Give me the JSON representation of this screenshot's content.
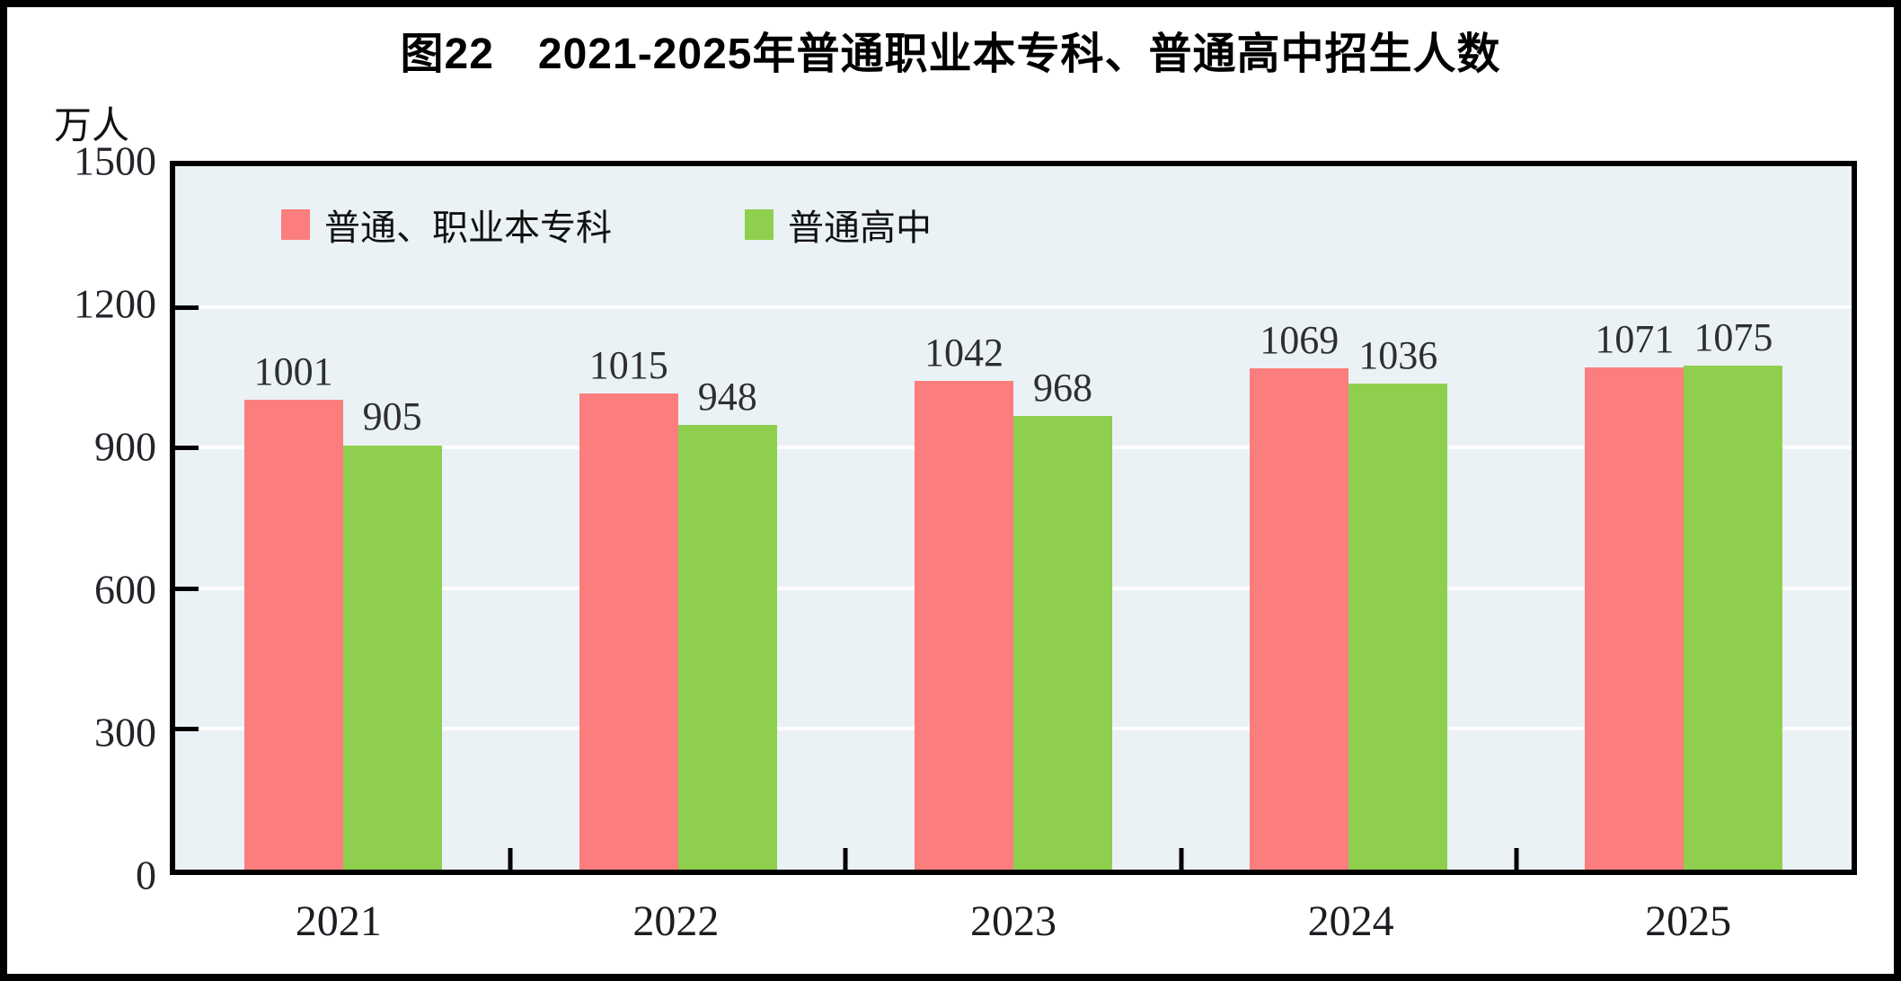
{
  "title": "图22　2021-2025年普通职业本专科、普通高中招生人数",
  "unit_label": "万人",
  "colors": {
    "series_1": "#FB7D7D",
    "series_2": "#8FCF4E",
    "plot_background": "#EAF2F6",
    "gridline": "#FFFFFF",
    "axis": "#000000",
    "text": "#1c1c22"
  },
  "legend": [
    {
      "label": "普通、职业本专科",
      "color": "#FB7D7D"
    },
    {
      "label": "普通高中",
      "color": "#8FCF4E"
    }
  ],
  "chart_data": {
    "type": "bar",
    "title": "图22　2021-2025年普通职业本专科、普通高中招生人数",
    "ylabel": "万人",
    "xlabel": "",
    "categories": [
      "2021",
      "2022",
      "2023",
      "2024",
      "2025"
    ],
    "series": [
      {
        "name": "普通、职业本专科",
        "color": "#FB7D7D",
        "values": [
          1001,
          1015,
          1042,
          1069,
          1071
        ]
      },
      {
        "name": "普通高中",
        "color": "#8FCF4E",
        "values": [
          905,
          948,
          968,
          1036,
          1075
        ]
      }
    ],
    "ylim": [
      0,
      1500
    ],
    "yticks": [
      0,
      300,
      600,
      900,
      1200,
      1500
    ],
    "grid": true,
    "gridline_color": "#FFFFFF",
    "plot_bg": "#EAF2F6",
    "legend_position": "top-left-inside",
    "data_labels": true
  }
}
